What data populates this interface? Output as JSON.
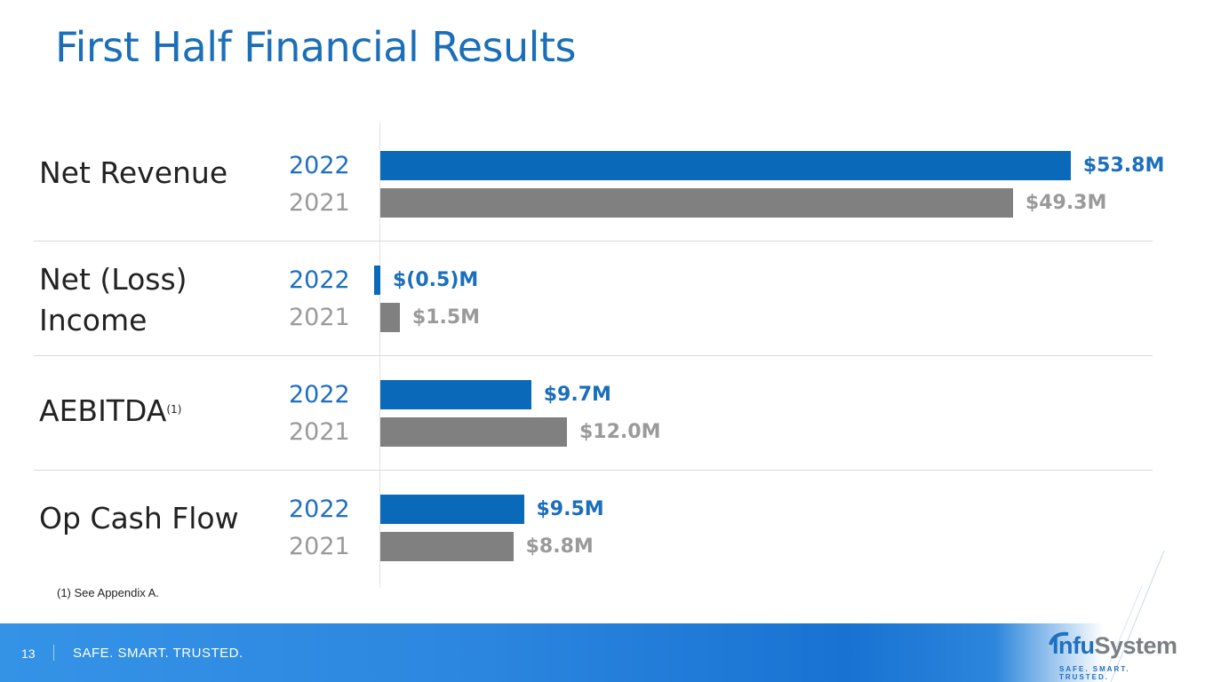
{
  "title": "First Half Financial Results",
  "footnote": "(1) See Appendix A.",
  "footer": {
    "page_number": "13",
    "tagline": "SAFE. SMART. TRUSTED.",
    "logo_name_blue": "Infu",
    "logo_name_gray": "System",
    "logo_tagline": "SAFE. SMART. TRUSTED."
  },
  "colors": {
    "year_2022": "#0a6ab9",
    "year_2021": "#808080",
    "title": "#1b6fb8"
  },
  "chart_data": {
    "type": "bar",
    "orientation": "horizontal",
    "title": "First Half Financial Results",
    "categories": [
      "Net Revenue",
      "Net (Loss) Income",
      "AEBITDA",
      "Op Cash Flow"
    ],
    "category_footnotes": [
      "",
      "",
      "(1)",
      ""
    ],
    "units": "$M",
    "series": [
      {
        "name": "2022",
        "values": [
          53.8,
          -0.5,
          9.7,
          9.5
        ],
        "labels": [
          "$53.8M",
          "$(0.5)M",
          "$9.7M",
          "$9.5M"
        ]
      },
      {
        "name": "2021",
        "values": [
          49.3,
          1.5,
          12.0,
          8.8
        ],
        "labels": [
          "$49.3M",
          "$1.5M",
          "$12.0M",
          "$8.8M"
        ]
      }
    ],
    "grid": false,
    "legend": "none"
  }
}
